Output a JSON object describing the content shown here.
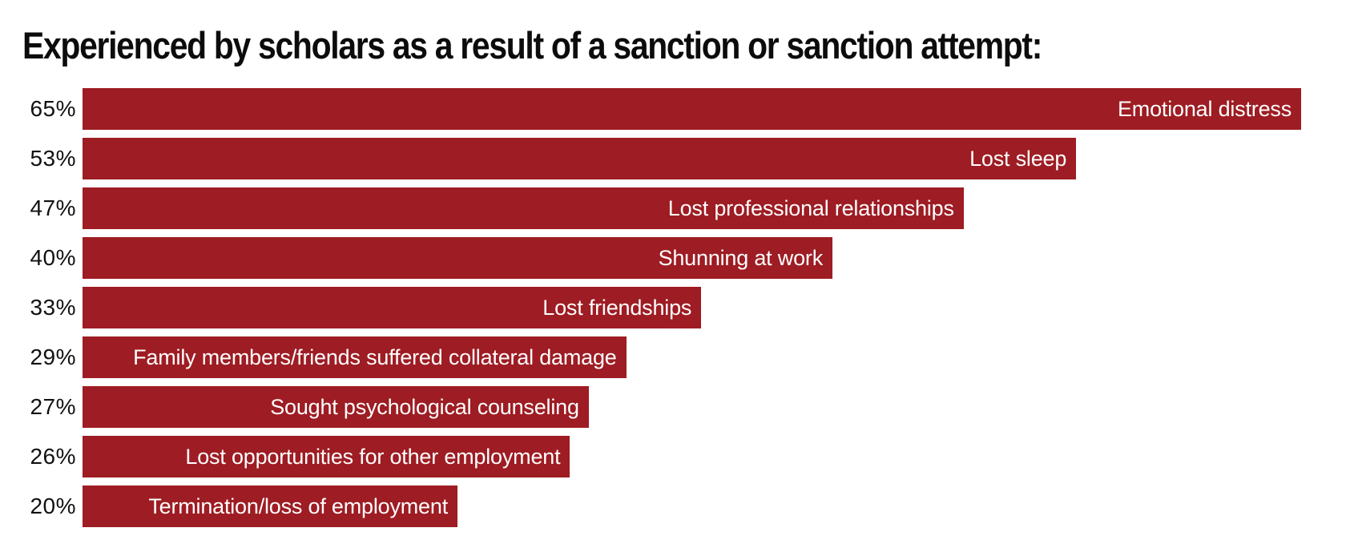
{
  "page": {
    "background": "#ffffff"
  },
  "chart_data": {
    "type": "bar",
    "orientation": "horizontal",
    "title": "Experienced by scholars as a result of a sanction or sanction attempt:",
    "categories": [
      "Emotional distress",
      "Lost sleep",
      "Lost professional relationships",
      "Shunning at work",
      "Lost friendships",
      "Family members/friends suffered collateral damage",
      "Sought psychological counseling",
      "Lost opportunities for other employment",
      "Termination/loss of employment"
    ],
    "values": [
      65,
      53,
      47,
      40,
      33,
      29,
      27,
      26,
      20
    ],
    "value_labels": [
      "65%",
      "53%",
      "47%",
      "40%",
      "33%",
      "29%",
      "27%",
      "26%",
      "20%"
    ],
    "xlim": [
      0,
      65
    ],
    "bar_color": "#9E1C23",
    "bar_label_color": "#FFFFFF",
    "value_label_color": "#111111",
    "title_color": "#0C0C0C",
    "bar_label_position": "inside-end",
    "value_label_position": "outside-left",
    "grid": false,
    "legend": false
  }
}
